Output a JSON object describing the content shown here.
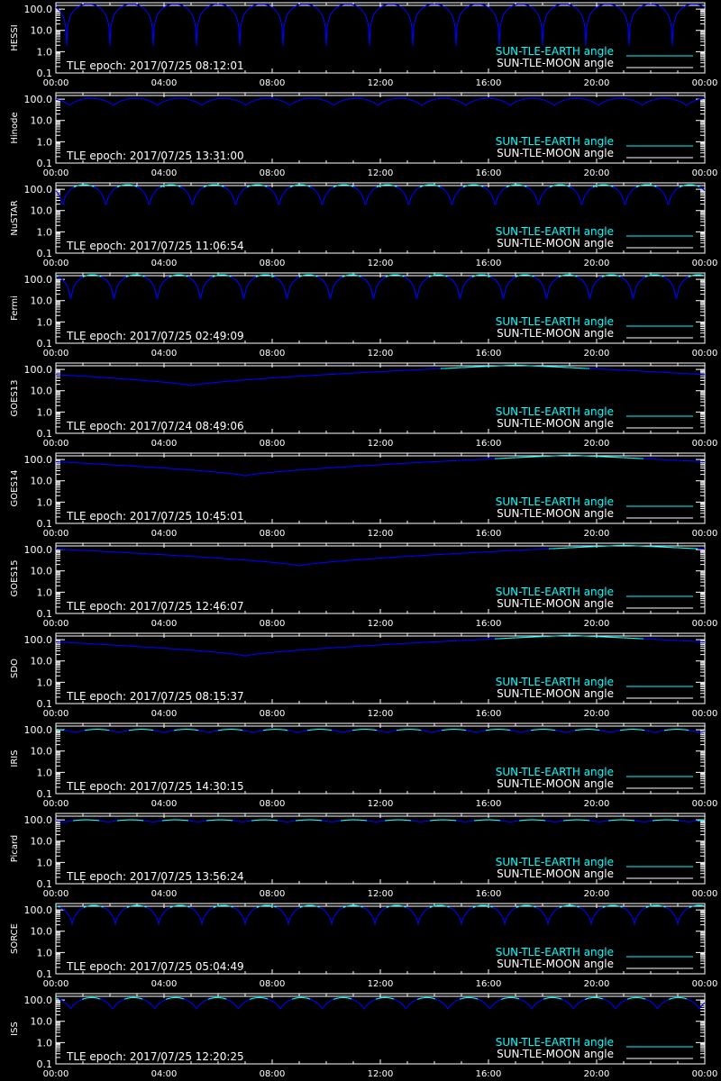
{
  "chart_data": [
    {
      "type": "line",
      "ylabel": "HESSI",
      "epoch_label": "TLE epoch: 2017/07/25 08:12:01",
      "x_ticks": [
        "00:00",
        "04:00",
        "08:00",
        "12:00",
        "16:00",
        "20:00",
        "00:00"
      ],
      "y_ticks": [
        "100.0",
        "10.0",
        "1.0",
        "0.1"
      ],
      "y_scale": "log",
      "ylim": [
        0.1,
        200
      ],
      "series": [
        {
          "name": "SUN-TLE-EARTH angle",
          "color": "#00ffff",
          "style": "sawtooth",
          "max": 170,
          "min": 2,
          "period_hours": 1.6,
          "phase_hours": 0.4,
          "cap": 180
        },
        {
          "name": "SUN-TLE-MOON angle",
          "color": "#ffffff",
          "value": 150
        }
      ]
    },
    {
      "type": "line",
      "ylabel": "Hinode",
      "epoch_label": "TLE epoch: 2017/07/25 13:31:00",
      "x_ticks": [
        "00:00",
        "04:00",
        "08:00",
        "12:00",
        "16:00",
        "20:00",
        "00:00"
      ],
      "y_ticks": [
        "100.0",
        "10.0",
        "1.0",
        "0.1"
      ],
      "y_scale": "log",
      "ylim": [
        0.1,
        200
      ],
      "series": [
        {
          "name": "SUN-TLE-EARTH angle",
          "color": "#00ffff",
          "style": "sawtooth",
          "max": 110,
          "min": 52,
          "period_hours": 1.63,
          "phase_hours": 0.5,
          "cap": 180
        },
        {
          "name": "SUN-TLE-MOON angle",
          "color": "#ffffff",
          "value": 150
        }
      ]
    },
    {
      "type": "line",
      "ylabel": "NuSTAR",
      "epoch_label": "TLE epoch: 2017/07/25 11:06:54",
      "x_ticks": [
        "00:00",
        "04:00",
        "08:00",
        "12:00",
        "16:00",
        "20:00",
        "00:00"
      ],
      "y_ticks": [
        "100.0",
        "10.0",
        "1.0",
        "0.1"
      ],
      "y_scale": "log",
      "ylim": [
        0.1,
        200
      ],
      "series": [
        {
          "name": "SUN-TLE-EARTH angle",
          "color": "#00ffff",
          "style": "sawtooth",
          "max": 165,
          "min": 15,
          "period_hours": 1.6,
          "phase_hours": 0.25,
          "cap": 130
        },
        {
          "name": "SUN-TLE-MOON angle",
          "color": "#ffffff",
          "value": 150
        }
      ]
    },
    {
      "type": "line",
      "ylabel": "Fermi",
      "epoch_label": "TLE epoch: 2017/07/25 02:49:09",
      "x_ticks": [
        "00:00",
        "04:00",
        "08:00",
        "12:00",
        "16:00",
        "20:00",
        "00:00"
      ],
      "y_ticks": [
        "100.0",
        "10.0",
        "1.0",
        "0.1"
      ],
      "y_scale": "log",
      "ylim": [
        0.1,
        200
      ],
      "series": [
        {
          "name": "SUN-TLE-EARTH angle",
          "color": "#00ffff",
          "style": "sawtooth",
          "max": 165,
          "min": 8,
          "period_hours": 1.6,
          "phase_hours": 0.55,
          "cap": 130
        },
        {
          "name": "SUN-TLE-MOON angle",
          "color": "#ffffff",
          "value": 150
        }
      ]
    },
    {
      "type": "line",
      "ylabel": "GOES13",
      "epoch_label": "TLE epoch: 2017/07/24 08:49:06",
      "x_ticks": [
        "00:00",
        "04:00",
        "08:00",
        "12:00",
        "16:00",
        "20:00",
        "00:00"
      ],
      "y_ticks": [
        "100.0",
        "10.0",
        "1.0",
        "0.1"
      ],
      "y_scale": "log",
      "ylim": [
        0.1,
        200
      ],
      "series": [
        {
          "name": "SUN-TLE-EARTH angle",
          "color": "#00ffff",
          "style": "daily",
          "max": 160,
          "min": 17,
          "trough_hours": 5,
          "cap": 110
        },
        {
          "name": "SUN-TLE-MOON angle",
          "color": "#ffffff",
          "value": 150
        }
      ]
    },
    {
      "type": "line",
      "ylabel": "GOES14",
      "epoch_label": "TLE epoch: 2017/07/25 10:45:01",
      "x_ticks": [
        "00:00",
        "04:00",
        "08:00",
        "12:00",
        "16:00",
        "20:00",
        "00:00"
      ],
      "y_ticks": [
        "100.0",
        "10.0",
        "1.0",
        "0.1"
      ],
      "y_scale": "log",
      "ylim": [
        0.1,
        200
      ],
      "series": [
        {
          "name": "SUN-TLE-EARTH angle",
          "color": "#00ffff",
          "style": "daily",
          "max": 160,
          "min": 17,
          "trough_hours": 7,
          "cap": 110
        },
        {
          "name": "SUN-TLE-MOON angle",
          "color": "#ffffff",
          "value": 150
        }
      ]
    },
    {
      "type": "line",
      "ylabel": "GOES15",
      "epoch_label": "TLE epoch: 2017/07/25 12:46:07",
      "x_ticks": [
        "00:00",
        "04:00",
        "08:00",
        "12:00",
        "16:00",
        "20:00",
        "00:00"
      ],
      "y_ticks": [
        "100.0",
        "10.0",
        "1.0",
        "0.1"
      ],
      "y_scale": "log",
      "ylim": [
        0.1,
        200
      ],
      "series": [
        {
          "name": "SUN-TLE-EARTH angle",
          "color": "#00ffff",
          "style": "daily",
          "max": 160,
          "min": 17,
          "trough_hours": 9,
          "cap": 110
        },
        {
          "name": "SUN-TLE-MOON angle",
          "color": "#ffffff",
          "value": 150
        }
      ]
    },
    {
      "type": "line",
      "ylabel": "SDO",
      "epoch_label": "TLE epoch: 2017/07/25 08:15:37",
      "x_ticks": [
        "00:00",
        "04:00",
        "08:00",
        "12:00",
        "16:00",
        "20:00",
        "00:00"
      ],
      "y_ticks": [
        "100.0",
        "10.0",
        "1.0",
        "0.1"
      ],
      "y_scale": "log",
      "ylim": [
        0.1,
        200
      ],
      "series": [
        {
          "name": "SUN-TLE-EARTH angle",
          "color": "#00ffff",
          "style": "daily",
          "max": 160,
          "min": 17,
          "trough_hours": 7,
          "cap": 110
        },
        {
          "name": "SUN-TLE-MOON angle",
          "color": "#ffffff",
          "value": 150
        }
      ]
    },
    {
      "type": "line",
      "ylabel": "IRIS",
      "epoch_label": "TLE epoch: 2017/07/25 14:30:15",
      "x_ticks": [
        "00:00",
        "04:00",
        "08:00",
        "12:00",
        "16:00",
        "20:00",
        "00:00"
      ],
      "y_ticks": [
        "100.0",
        "10.0",
        "1.0",
        "0.1"
      ],
      "y_scale": "log",
      "ylim": [
        0.1,
        200
      ],
      "series": [
        {
          "name": "SUN-TLE-EARTH angle",
          "color": "#00ffff",
          "style": "sawtooth",
          "max": 105,
          "min": 75,
          "period_hours": 1.65,
          "phase_hours": 0.7,
          "cap": 95
        },
        {
          "name": "SUN-TLE-MOON angle",
          "color": "#ffffff",
          "value": 150
        }
      ]
    },
    {
      "type": "line",
      "ylabel": "Picard",
      "epoch_label": "TLE epoch: 2017/07/25 13:56:24",
      "x_ticks": [
        "00:00",
        "04:00",
        "08:00",
        "12:00",
        "16:00",
        "20:00",
        "00:00"
      ],
      "y_ticks": [
        "100.0",
        "10.0",
        "1.0",
        "0.1"
      ],
      "y_scale": "log",
      "ylim": [
        0.1,
        200
      ],
      "series": [
        {
          "name": "SUN-TLE-EARTH angle",
          "color": "#00ffff",
          "style": "sawtooth",
          "max": 100,
          "min": 80,
          "period_hours": 1.65,
          "phase_hours": 0.3,
          "cap": 92
        },
        {
          "name": "SUN-TLE-MOON angle",
          "color": "#ffffff",
          "value": 150
        }
      ]
    },
    {
      "type": "line",
      "ylabel": "SORCE",
      "epoch_label": "TLE epoch: 2017/07/25 05:04:49",
      "x_ticks": [
        "00:00",
        "04:00",
        "08:00",
        "12:00",
        "16:00",
        "20:00",
        "00:00"
      ],
      "y_ticks": [
        "100.0",
        "10.0",
        "1.0",
        "0.1"
      ],
      "y_scale": "log",
      "ylim": [
        0.1,
        200
      ],
      "series": [
        {
          "name": "SUN-TLE-EARTH angle",
          "color": "#00ffff",
          "style": "sawtooth",
          "max": 165,
          "min": 22,
          "period_hours": 1.6,
          "phase_hours": 0.6,
          "cap": 130
        },
        {
          "name": "SUN-TLE-MOON angle",
          "color": "#ffffff",
          "value": 150
        }
      ]
    },
    {
      "type": "line",
      "ylabel": "ISS",
      "epoch_label": "TLE epoch: 2017/07/25 12:20:25",
      "x_ticks": [
        "00:00",
        "04:00",
        "08:00",
        "12:00",
        "16:00",
        "20:00",
        "00:00"
      ],
      "y_ticks": [
        "100.0",
        "10.0",
        "1.0",
        "0.1"
      ],
      "y_scale": "log",
      "ylim": [
        0.1,
        200
      ],
      "series": [
        {
          "name": "SUN-TLE-EARTH angle",
          "color": "#00ffff",
          "style": "sawtooth",
          "max": 130,
          "min": 38,
          "period_hours": 1.55,
          "phase_hours": 0.55,
          "cap": 110
        },
        {
          "name": "SUN-TLE-MOON angle",
          "color": "#ffffff",
          "value": 150
        }
      ]
    }
  ],
  "colors": {
    "background": "#000000",
    "axes": "#ffffff",
    "below_cap_line": "#0000ff",
    "above_cap_line": "#00ffff",
    "moon_line": "#ffffff"
  }
}
